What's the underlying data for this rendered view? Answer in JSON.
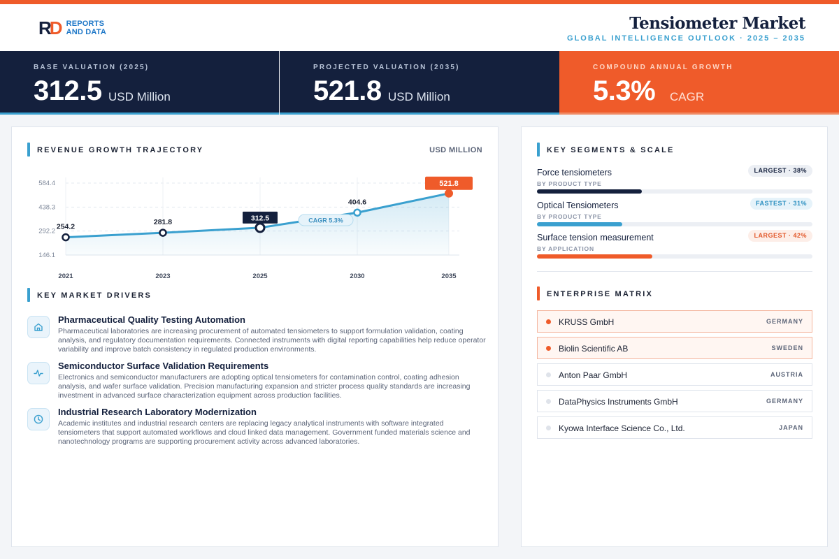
{
  "header": {
    "logo_mark": "RD",
    "logo_line1": "REPORTS",
    "logo_line2": "AND DATA",
    "title": "Tensiometer Market",
    "subtitle": "GLOBAL INTELLIGENCE OUTLOOK · 2025 – 2035"
  },
  "kpis": [
    {
      "label": "BASE VALUATION (2025)",
      "value": "312.5",
      "unit": "USD Million"
    },
    {
      "label": "PROJECTED VALUATION (2035)",
      "value": "521.8",
      "unit": "USD Million"
    },
    {
      "label": "COMPOUND ANNUAL GROWTH",
      "value": "5.3%",
      "unit": "CAGR"
    }
  ],
  "chart_section": {
    "title": "REVENUE GROWTH TRAJECTORY",
    "unit": "USD MILLION"
  },
  "chart_data": {
    "type": "line",
    "title": "REVENUE GROWTH TRAJECTORY",
    "ylabel": "USD MILLION",
    "x": [
      "2021",
      "2023",
      "2025",
      "2030",
      "2035"
    ],
    "values": [
      254.2,
      281.8,
      312.5,
      404.6,
      521.8
    ],
    "y_ticks": [
      584.4,
      438.3,
      292.2,
      146.1
    ],
    "ylim": [
      146.1,
      584.4
    ],
    "annotation": "CAGR 5.3%",
    "highlight": {
      "base_index": 2,
      "projected_index": 4
    },
    "grid": true,
    "colors": {
      "line": "#3aa0cf",
      "base": "#14203d",
      "projected": "#ef5b2a"
    }
  },
  "drivers_section": {
    "title": "KEY MARKET DRIVERS",
    "items": [
      {
        "icon": "home-icon",
        "title": "Pharmaceutical Quality Testing Automation",
        "desc": "Pharmaceutical laboratories are increasing procurement of automated tensiometers to support formulation validation, coating analysis, and regulatory documentation requirements. Connected instruments with digital reporting capabilities help reduce operator variability and improve batch consistency in regulated production environments."
      },
      {
        "icon": "activity-icon",
        "title": "Semiconductor Surface Validation Requirements",
        "desc": "Electronics and semiconductor manufacturers are adopting optical tensiometers for contamination control, coating adhesion analysis, and wafer surface validation. Precision manufacturing expansion and stricter process quality standards are increasing investment in advanced surface characterization equipment across production facilities."
      },
      {
        "icon": "clock-icon",
        "title": "Industrial Research Laboratory Modernization",
        "desc": "Academic institutes and industrial research centers are replacing legacy analytical instruments with software integrated tensiometers that support automated workflows and cloud linked data management. Government funded materials science and nanotechnology programs are supporting procurement activity across advanced laboratories."
      }
    ]
  },
  "segments_section": {
    "title": "KEY SEGMENTS & SCALE",
    "items": [
      {
        "name": "Force tensiometers",
        "sub": "BY PRODUCT TYPE",
        "badge": "LARGEST · 38%",
        "share": 0.38,
        "color": "#14203d",
        "badge_bg": "#eceff4",
        "badge_color": "#14203d"
      },
      {
        "name": "Optical Tensiometers",
        "sub": "BY PRODUCT TYPE",
        "badge": "FASTEST · 31%",
        "share": 0.31,
        "color": "#3aa0cf",
        "badge_bg": "#e6f3fa",
        "badge_color": "#2b8fc0"
      },
      {
        "name": "Surface tension measurement",
        "sub": "BY APPLICATION",
        "badge": "LARGEST · 42%",
        "share": 0.42,
        "color": "#ef5b2a",
        "badge_bg": "#fdeee8",
        "badge_color": "#e2582a"
      }
    ]
  },
  "enterprise_section": {
    "title": "ENTERPRISE MATRIX",
    "items": [
      {
        "name": "KRUSS GmbH",
        "country": "GERMANY",
        "highlight": true
      },
      {
        "name": "Biolin Scientific AB",
        "country": "SWEDEN",
        "highlight": true
      },
      {
        "name": "Anton Paar GmbH",
        "country": "AUSTRIA",
        "highlight": false
      },
      {
        "name": "DataPhysics Instruments GmbH",
        "country": "GERMANY",
        "highlight": false
      },
      {
        "name": "Kyowa Interface Science Co., Ltd.",
        "country": "JAPAN",
        "highlight": false
      }
    ]
  }
}
